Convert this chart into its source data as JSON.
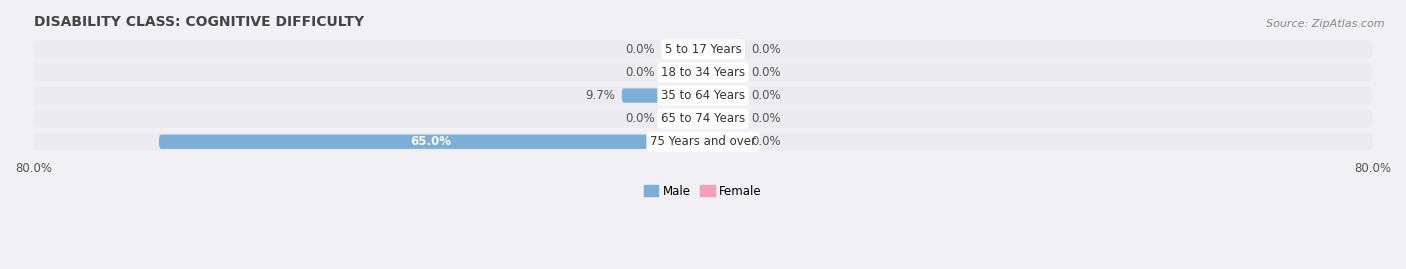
{
  "title": "DISABILITY CLASS: COGNITIVE DIFFICULTY",
  "source": "Source: ZipAtlas.com",
  "categories": [
    "5 to 17 Years",
    "18 to 34 Years",
    "35 to 64 Years",
    "65 to 74 Years",
    "75 Years and over"
  ],
  "male_values": [
    0.0,
    0.0,
    9.7,
    0.0,
    65.0
  ],
  "female_values": [
    0.0,
    0.0,
    0.0,
    0.0,
    0.0
  ],
  "male_color": "#7daed6",
  "female_color": "#f2a0b8",
  "bar_bg_color": "#e4e4ea",
  "row_bg_color": "#ebebf0",
  "xlim_left": -80.0,
  "xlim_right": 80.0,
  "x_left_label": "80.0%",
  "x_right_label": "80.0%",
  "title_fontsize": 10,
  "source_fontsize": 8,
  "label_fontsize": 8.5,
  "category_fontsize": 8.5,
  "bar_height": 0.62,
  "bar_min_display": 5.0,
  "background_color": "#f0f0f5"
}
